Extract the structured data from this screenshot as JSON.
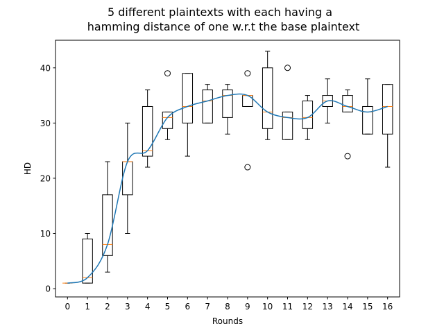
{
  "chart_data": {
    "type": "box",
    "title_lines": [
      "5 different plaintexts with each having a",
      "hamming distance of one w.r.t the base plaintext"
    ],
    "xlabel": "Rounds",
    "ylabel": "HD",
    "categories": [
      "0",
      "1",
      "2",
      "3",
      "4",
      "5",
      "6",
      "7",
      "8",
      "9",
      "10",
      "11",
      "12",
      "13",
      "14",
      "15",
      "16"
    ],
    "ylim": [
      -1.5,
      45
    ],
    "yticks": [
      0,
      10,
      20,
      30,
      40
    ],
    "boxes": [
      {
        "x": 0,
        "whislo": 1,
        "q1": 1,
        "med": 1,
        "q3": 1,
        "whishi": 1,
        "fliers": []
      },
      {
        "x": 1,
        "whislo": 1,
        "q1": 1,
        "med": 2,
        "q3": 9,
        "whishi": 10,
        "fliers": []
      },
      {
        "x": 2,
        "whislo": 3,
        "q1": 6,
        "med": 8,
        "q3": 17,
        "whishi": 23,
        "fliers": []
      },
      {
        "x": 3,
        "whislo": 10,
        "q1": 17,
        "med": 23,
        "q3": 23,
        "whishi": 30,
        "fliers": []
      },
      {
        "x": 4,
        "whislo": 22,
        "q1": 24,
        "med": 25,
        "q3": 33,
        "whishi": 36,
        "fliers": []
      },
      {
        "x": 5,
        "whislo": 27,
        "q1": 29,
        "med": 31,
        "q3": 32,
        "whishi": 32,
        "fliers": [
          39
        ]
      },
      {
        "x": 6,
        "whislo": 24,
        "q1": 30,
        "med": 33,
        "q3": 39,
        "whishi": 39,
        "fliers": []
      },
      {
        "x": 7,
        "whislo": 30,
        "q1": 30,
        "med": 34,
        "q3": 36,
        "whishi": 37,
        "fliers": []
      },
      {
        "x": 8,
        "whislo": 28,
        "q1": 31,
        "med": 35,
        "q3": 36,
        "whishi": 37,
        "fliers": []
      },
      {
        "x": 9,
        "whislo": 33,
        "q1": 33,
        "med": 35,
        "q3": 35,
        "whishi": 35,
        "fliers": [
          22,
          39
        ]
      },
      {
        "x": 10,
        "whislo": 27,
        "q1": 29,
        "med": 32,
        "q3": 40,
        "whishi": 43,
        "fliers": []
      },
      {
        "x": 11,
        "whislo": 27,
        "q1": 27,
        "med": 31,
        "q3": 32,
        "whishi": 32,
        "fliers": [
          40
        ]
      },
      {
        "x": 12,
        "whislo": 27,
        "q1": 29,
        "med": 31,
        "q3": 34,
        "whishi": 35,
        "fliers": []
      },
      {
        "x": 13,
        "whislo": 30,
        "q1": 33,
        "med": 34,
        "q3": 35,
        "whishi": 38,
        "fliers": []
      },
      {
        "x": 14,
        "whislo": 32,
        "q1": 32,
        "med": 33,
        "q3": 35,
        "whishi": 36,
        "fliers": [
          24
        ]
      },
      {
        "x": 15,
        "whislo": 28,
        "q1": 28,
        "med": 32,
        "q3": 33,
        "whishi": 38,
        "fliers": []
      },
      {
        "x": 16,
        "whislo": 22,
        "q1": 28,
        "med": 33,
        "q3": 37,
        "whishi": 37,
        "fliers": []
      }
    ],
    "median_line": {
      "x": [
        0,
        1,
        2,
        3,
        4,
        5,
        6,
        7,
        8,
        9,
        10,
        11,
        12,
        13,
        14,
        15,
        16
      ],
      "y": [
        1,
        2,
        8,
        23,
        25,
        31,
        33,
        34,
        35,
        35,
        32,
        31,
        31,
        34,
        33,
        32,
        33
      ]
    },
    "colors": {
      "box": "#000000",
      "median": "#ff7f0e",
      "line": "#1f77b4"
    }
  }
}
